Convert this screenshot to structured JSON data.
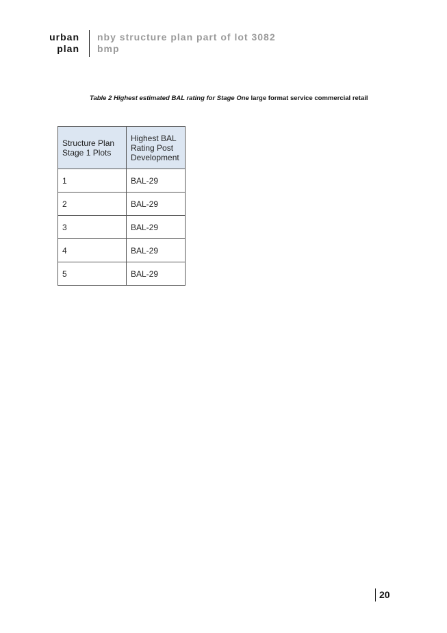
{
  "header": {
    "brand_line1": "urban",
    "brand_line2": "plan",
    "title_line1": "nby structure plan part of lot 3082",
    "title_line2": "bmp"
  },
  "caption": {
    "italic": "Table 2 Highest estimated BAL rating for Stage One",
    "regular": "large format service commercial retail"
  },
  "table": {
    "headers": [
      "Structure Plan Stage 1 Plots",
      "Highest BAL Rating Post Development"
    ],
    "rows": [
      [
        "1",
        "BAL-29"
      ],
      [
        "2",
        "BAL-29"
      ],
      [
        "3",
        "BAL-29"
      ],
      [
        "4",
        "BAL-29"
      ],
      [
        "5",
        "BAL-29"
      ]
    ]
  },
  "page_number": "20",
  "colors": {
    "header_fill": "#dce6f2",
    "title_grey": "#9a9a9a"
  }
}
